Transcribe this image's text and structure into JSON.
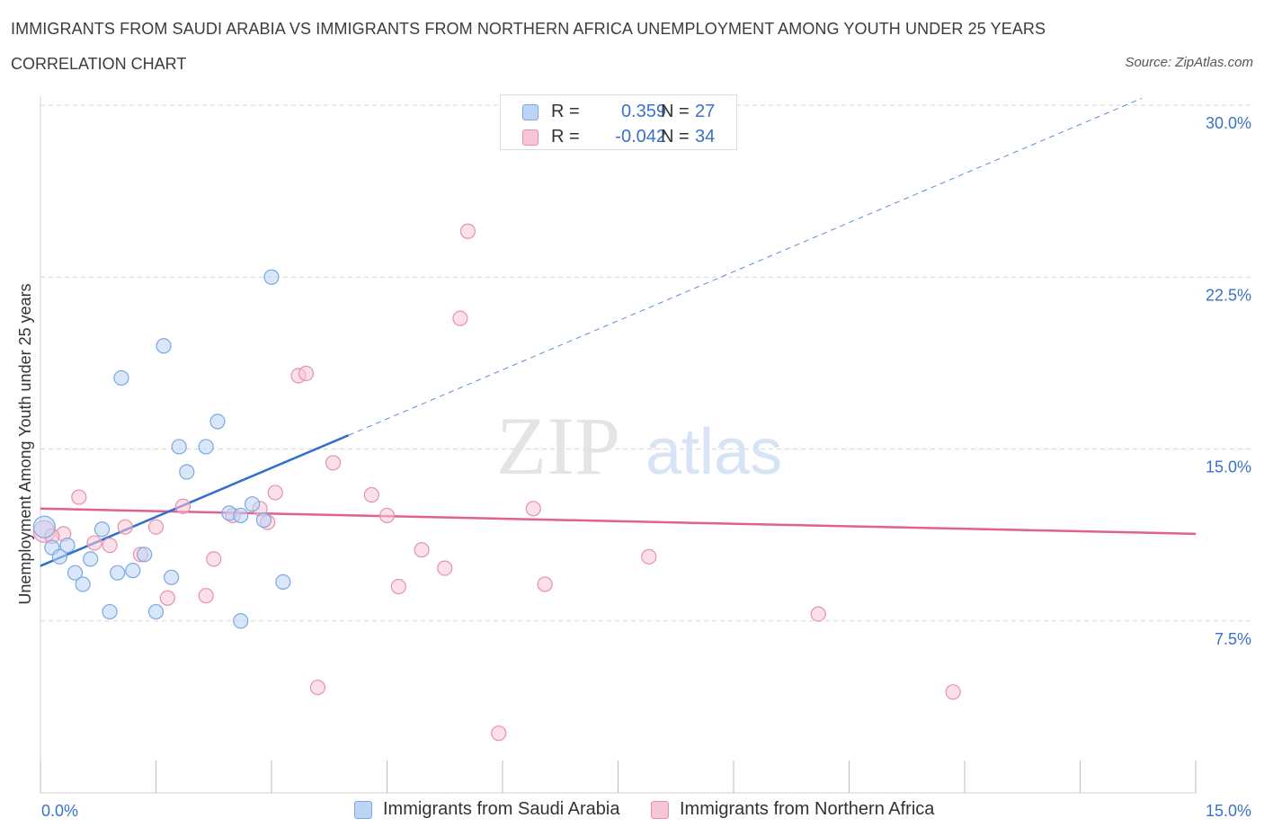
{
  "title": "IMMIGRANTS FROM SAUDI ARABIA VS IMMIGRANTS FROM NORTHERN AFRICA UNEMPLOYMENT AMONG YOUTH UNDER 25 YEARS",
  "subtitle": "CORRELATION CHART",
  "source": "Source: ZipAtlas.com",
  "watermark": {
    "zip": "ZIP",
    "atlas": "atlas"
  },
  "legend": {
    "r_label": "R =",
    "n_label": "N =",
    "rows": [
      {
        "r": "0.359",
        "n": "27"
      },
      {
        "r": "-0.042",
        "n": "34"
      }
    ]
  },
  "colors": {
    "blue_fill": "#bcd4f5",
    "blue_stroke": "#7aa8e4",
    "blue_line": "#2f6fcf",
    "pink_fill": "#f7c6d6",
    "pink_stroke": "#e890ac",
    "pink_line": "#e0608e",
    "axis_label": "#3a72c8",
    "grid": "#d7d7d7"
  },
  "chart_data": {
    "type": "scatter",
    "title": "IMMIGRANTS FROM SAUDI ARABIA VS IMMIGRANTS FROM NORTHERN AFRICA UNEMPLOYMENT AMONG YOUTH UNDER 25 YEARS",
    "xlabel": "",
    "ylabel": "Unemployment Among Youth under 25 years",
    "xlim": [
      0,
      15
    ],
    "ylim": [
      0,
      30
    ],
    "x_tick_labels": [
      "0.0%",
      "15.0%"
    ],
    "y_ticks": [
      7.5,
      15.0,
      22.5,
      30.0
    ],
    "y_tick_labels": [
      "7.5%",
      "15.0%",
      "22.5%",
      "30.0%"
    ],
    "grid": true,
    "series": [
      {
        "name": "Immigrants from Saudi Arabia",
        "color": "blue",
        "points": [
          [
            0.05,
            11.6
          ],
          [
            0.15,
            10.7
          ],
          [
            0.25,
            10.3
          ],
          [
            0.35,
            10.8
          ],
          [
            0.45,
            9.6
          ],
          [
            0.55,
            9.1
          ],
          [
            0.65,
            10.2
          ],
          [
            0.8,
            11.5
          ],
          [
            0.9,
            7.9
          ],
          [
            1.0,
            9.6
          ],
          [
            1.05,
            18.1
          ],
          [
            1.2,
            9.7
          ],
          [
            1.35,
            10.4
          ],
          [
            1.5,
            7.9
          ],
          [
            1.6,
            19.5
          ],
          [
            1.7,
            9.4
          ],
          [
            1.8,
            15.1
          ],
          [
            1.9,
            14.0
          ],
          [
            2.15,
            15.1
          ],
          [
            2.3,
            16.2
          ],
          [
            2.6,
            7.5
          ],
          [
            2.45,
            12.2
          ],
          [
            2.6,
            12.1
          ],
          [
            2.75,
            12.6
          ],
          [
            2.9,
            11.9
          ],
          [
            3.0,
            22.5
          ],
          [
            3.15,
            9.2
          ]
        ],
        "trend": {
          "x": [
            0.0,
            4.0
          ],
          "y": [
            9.9,
            15.6
          ]
        },
        "trend_extension": {
          "x": [
            4.0,
            14.3
          ],
          "y": [
            15.6,
            30.3
          ]
        }
      },
      {
        "name": "Immigrants from Northern Africa",
        "color": "pink",
        "points": [
          [
            0.05,
            11.4
          ],
          [
            0.3,
            11.3
          ],
          [
            0.5,
            12.9
          ],
          [
            0.7,
            10.9
          ],
          [
            0.9,
            10.8
          ],
          [
            1.1,
            11.6
          ],
          [
            1.3,
            10.4
          ],
          [
            1.5,
            11.6
          ],
          [
            1.65,
            8.5
          ],
          [
            1.85,
            12.5
          ],
          [
            2.15,
            8.6
          ],
          [
            2.25,
            10.2
          ],
          [
            2.5,
            12.1
          ],
          [
            2.85,
            12.4
          ],
          [
            2.95,
            11.8
          ],
          [
            3.05,
            13.1
          ],
          [
            3.35,
            18.2
          ],
          [
            3.45,
            18.3
          ],
          [
            3.6,
            4.6
          ],
          [
            3.8,
            14.4
          ],
          [
            4.3,
            13.0
          ],
          [
            4.5,
            12.1
          ],
          [
            4.65,
            9.0
          ],
          [
            4.95,
            10.6
          ],
          [
            5.25,
            9.8
          ],
          [
            5.45,
            20.7
          ],
          [
            5.55,
            24.5
          ],
          [
            5.95,
            2.6
          ],
          [
            6.4,
            12.4
          ],
          [
            6.55,
            9.1
          ],
          [
            7.9,
            10.3
          ],
          [
            10.1,
            7.8
          ],
          [
            11.85,
            4.4
          ],
          [
            0.15,
            11.2
          ]
        ],
        "trend": {
          "x": [
            0.0,
            15.0
          ],
          "y": [
            12.4,
            11.3
          ]
        }
      }
    ]
  }
}
